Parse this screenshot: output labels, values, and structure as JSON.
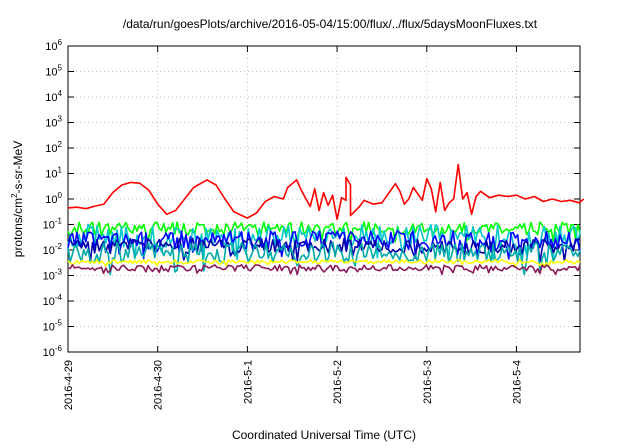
{
  "chart_data": {
    "type": "line",
    "title": "/data/run/goesPlots/archive/2016-05-04/15:00/flux/../flux/5daysMoonFluxes.txt",
    "xlabel": "Coordinated Universal Time (UTC)",
    "ylabel": {
      "prefix": "protons/cm",
      "superscript": "2",
      "suffix": "-s-sr-MeV"
    },
    "yscale": "log",
    "ylim_exponent": [
      -6,
      6
    ],
    "y_ticks": [
      {
        "base": "10",
        "exp": "6"
      },
      {
        "base": "10",
        "exp": "5"
      },
      {
        "base": "10",
        "exp": "4"
      },
      {
        "base": "10",
        "exp": "3"
      },
      {
        "base": "10",
        "exp": "2"
      },
      {
        "base": "10",
        "exp": "1"
      },
      {
        "base": "10",
        "exp": "0"
      },
      {
        "base": "10",
        "exp": "-1"
      },
      {
        "base": "10",
        "exp": "-2"
      },
      {
        "base": "10",
        "exp": "-3"
      },
      {
        "base": "10",
        "exp": "-4"
      },
      {
        "base": "10",
        "exp": "-5"
      },
      {
        "base": "10",
        "exp": "-6"
      }
    ],
    "x_days": [
      "2016-4-29",
      "2016-4-30",
      "2016-5-1",
      "2016-5-2",
      "2016-5-3",
      "2016-5-4"
    ],
    "xlim": [
      "2016-4-29 00:00",
      "2016-5-4 17:00"
    ],
    "grid": true,
    "series": [
      {
        "color": "#ff0000",
        "log10_values": [
          [
            0.0,
            -0.35
          ],
          [
            0.1,
            -0.32
          ],
          [
            0.2,
            -0.38
          ],
          [
            0.3,
            -0.28
          ],
          [
            0.4,
            -0.2
          ],
          [
            0.5,
            0.25
          ],
          [
            0.6,
            0.55
          ],
          [
            0.7,
            0.65
          ],
          [
            0.8,
            0.62
          ],
          [
            0.9,
            0.35
          ],
          [
            1.0,
            -0.2
          ],
          [
            1.1,
            -0.6
          ],
          [
            1.2,
            -0.45
          ],
          [
            1.3,
            0.0
          ],
          [
            1.4,
            0.45
          ],
          [
            1.55,
            0.75
          ],
          [
            1.65,
            0.55
          ],
          [
            1.75,
            0.0
          ],
          [
            1.85,
            -0.5
          ],
          [
            2.0,
            -0.75
          ],
          [
            2.1,
            -0.55
          ],
          [
            2.2,
            -0.1
          ],
          [
            2.3,
            0.1
          ],
          [
            2.4,
            0.0
          ],
          [
            2.45,
            0.45
          ],
          [
            2.5,
            0.6
          ],
          [
            2.55,
            0.75
          ],
          [
            2.6,
            0.35
          ],
          [
            2.7,
            -0.3
          ],
          [
            2.75,
            0.4
          ],
          [
            2.8,
            -0.45
          ],
          [
            2.85,
            0.25
          ],
          [
            2.9,
            -0.25
          ],
          [
            2.95,
            0.15
          ],
          [
            3.0,
            -0.8
          ],
          [
            3.05,
            0.05
          ],
          [
            3.1,
            -0.05
          ],
          [
            3.1,
            0.85
          ],
          [
            3.15,
            0.55
          ],
          [
            3.15,
            -0.65
          ],
          [
            3.25,
            -0.3
          ],
          [
            3.3,
            -0.05
          ],
          [
            3.4,
            -0.2
          ],
          [
            3.5,
            -0.15
          ],
          [
            3.6,
            0.35
          ],
          [
            3.65,
            0.6
          ],
          [
            3.7,
            0.3
          ],
          [
            3.75,
            -0.2
          ],
          [
            3.8,
            0.0
          ],
          [
            3.85,
            0.45
          ],
          [
            3.9,
            0.2
          ],
          [
            3.95,
            -0.05
          ],
          [
            4.0,
            0.8
          ],
          [
            4.05,
            0.4
          ],
          [
            4.1,
            -0.5
          ],
          [
            4.15,
            0.65
          ],
          [
            4.2,
            -0.45
          ],
          [
            4.25,
            -0.15
          ],
          [
            4.3,
            0.0
          ],
          [
            4.35,
            1.35
          ],
          [
            4.4,
            0.0
          ],
          [
            4.45,
            0.25
          ],
          [
            4.5,
            -0.6
          ],
          [
            4.55,
            0.1
          ],
          [
            4.6,
            0.3
          ],
          [
            4.7,
            0.05
          ],
          [
            4.8,
            0.15
          ],
          [
            4.9,
            0.1
          ],
          [
            5.0,
            0.15
          ],
          [
            5.1,
            0.0
          ],
          [
            5.2,
            0.1
          ],
          [
            5.3,
            -0.1
          ],
          [
            5.4,
            0.0
          ],
          [
            5.5,
            -0.1
          ],
          [
            5.6,
            -0.05
          ],
          [
            5.7,
            -0.15
          ],
          [
            5.75,
            0.0
          ]
        ]
      },
      {
        "color": "#00ff00",
        "baseline": -1.15,
        "amplitude": 0.25
      },
      {
        "color": "#00c8c8",
        "baseline": -1.45,
        "amplitude": 0.45
      },
      {
        "color": "#0000ff",
        "baseline": -1.6,
        "amplitude": 0.35
      },
      {
        "color": "#0000aa",
        "baseline": -1.85,
        "amplitude": 0.3
      },
      {
        "color": "#00aaaa",
        "baseline": -2.1,
        "amplitude": 0.4
      },
      {
        "color": "#ffff00",
        "baseline": -2.45,
        "amplitude": 0.08
      },
      {
        "color": "#8b1a5a",
        "baseline": -2.7,
        "amplitude": 0.12
      }
    ]
  }
}
